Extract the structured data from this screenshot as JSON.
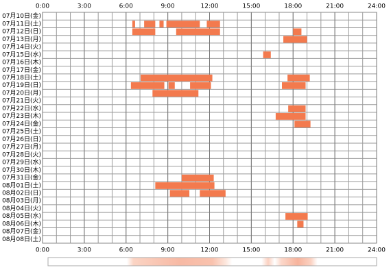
{
  "chart_data": {
    "type": "timeline",
    "categories": [
      "07月10日(金)",
      "07月11日(土)",
      "07月12日(日)",
      "07月13日(月)",
      "07月14日(火)",
      "07月15日(水)",
      "07月16日(木)",
      "07月17日(金)",
      "07月18日(土)",
      "07月19日(日)",
      "07月20日(月)",
      "07月21日(火)",
      "07月22日(水)",
      "07月23日(木)",
      "07月24日(金)",
      "07月25日(土)",
      "07月26日(日)",
      "07月27日(月)",
      "07月28日(火)",
      "07月29日(水)",
      "07月30日(木)",
      "07月31日(金)",
      "08月01日(土)",
      "08月02日(日)",
      "08月03日(月)",
      "08月04日(火)",
      "08月05日(水)",
      "08月06日(木)",
      "08月07日(金)",
      "08月08日(土)"
    ],
    "intervals": [
      [],
      [
        [
          6.45,
          6.65
        ],
        [
          7.3,
          8.1
        ],
        [
          8.4,
          8.7
        ],
        [
          8.9,
          11.3
        ],
        [
          11.8,
          12.75
        ]
      ],
      [
        [
          6.45,
          8.1
        ],
        [
          9.6,
          12.75
        ],
        [
          18.0,
          18.6
        ]
      ],
      [
        [
          17.3,
          19.0
        ]
      ],
      [],
      [
        [
          15.85,
          16.4
        ]
      ],
      [],
      [],
      [
        [
          7.05,
          12.2
        ],
        [
          17.6,
          19.2
        ]
      ],
      [
        [
          6.35,
          8.75
        ],
        [
          9.05,
          9.5
        ],
        [
          10.6,
          12.1
        ],
        [
          17.2,
          18.9
        ]
      ],
      [
        [
          7.9,
          11.2
        ]
      ],
      [],
      [
        [
          17.65,
          18.9
        ]
      ],
      [
        [
          16.75,
          18.9
        ]
      ],
      [
        [
          18.1,
          19.25
        ]
      ],
      [],
      [],
      [],
      [],
      [],
      [],
      [
        [
          10.0,
          12.3
        ]
      ],
      [
        [
          8.1,
          12.35
        ]
      ],
      [
        [
          9.15,
          10.55
        ],
        [
          11.3,
          13.15
        ]
      ],
      [],
      [],
      [
        [
          17.45,
          19.05
        ]
      ],
      [
        [
          18.3,
          18.75
        ]
      ],
      [],
      []
    ],
    "color": "#f37a4e",
    "xlim": [
      0,
      24
    ],
    "xticks": [
      {
        "value": 0,
        "label": "0:00"
      },
      {
        "value": 3,
        "label": "3:00"
      },
      {
        "value": 6,
        "label": "6:00"
      },
      {
        "value": 9,
        "label": "9:00"
      },
      {
        "value": 12,
        "label": "12:00"
      },
      {
        "value": 15,
        "label": "15:00"
      },
      {
        "value": 18,
        "label": "18:00"
      },
      {
        "value": 21,
        "label": "21:00"
      },
      {
        "value": 24,
        "label": "24:00"
      }
    ],
    "grid": true
  }
}
